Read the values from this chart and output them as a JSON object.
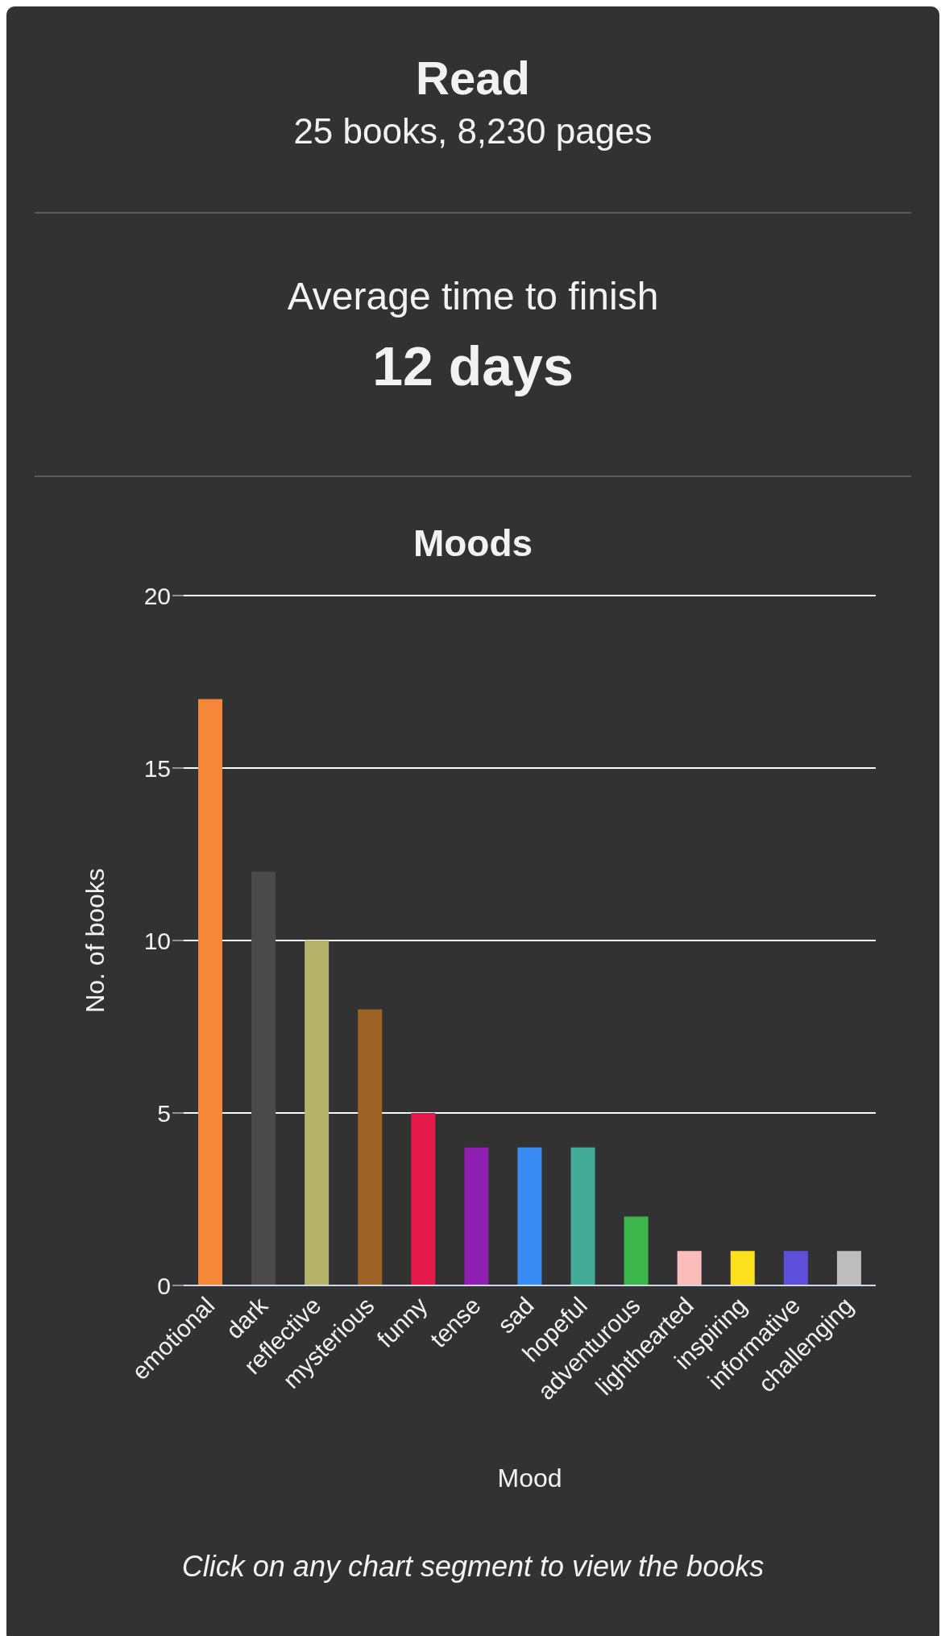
{
  "chart_data": {
    "type": "bar",
    "title": "Moods",
    "xlabel": "Mood",
    "ylabel": "No. of books",
    "categories": [
      "emotional",
      "dark",
      "reflective",
      "mysterious",
      "funny",
      "tense",
      "sad",
      "hopeful",
      "adventurous",
      "lighthearted",
      "inspiring",
      "informative",
      "challenging"
    ],
    "values": [
      17,
      12,
      10,
      8,
      5,
      4,
      4,
      4,
      2,
      1,
      1,
      1,
      1
    ],
    "colors": [
      "#f5863a",
      "#4a4a4a",
      "#b5b46a",
      "#9c6226",
      "#e5194a",
      "#8e1fb0",
      "#3a8cf5",
      "#44ab96",
      "#3cb54a",
      "#fbbcbc",
      "#fde01d",
      "#5e4fdb",
      "#bdbdbd"
    ],
    "ylim": [
      0,
      20
    ],
    "yticks": [
      0,
      5,
      10,
      15,
      20
    ],
    "grid": "y",
    "legend": false,
    "annotations": [
      "Read",
      "25 books, 8,230 pages",
      "Average time to finish",
      "12 days",
      "Click on any chart segment to view the books"
    ]
  }
}
